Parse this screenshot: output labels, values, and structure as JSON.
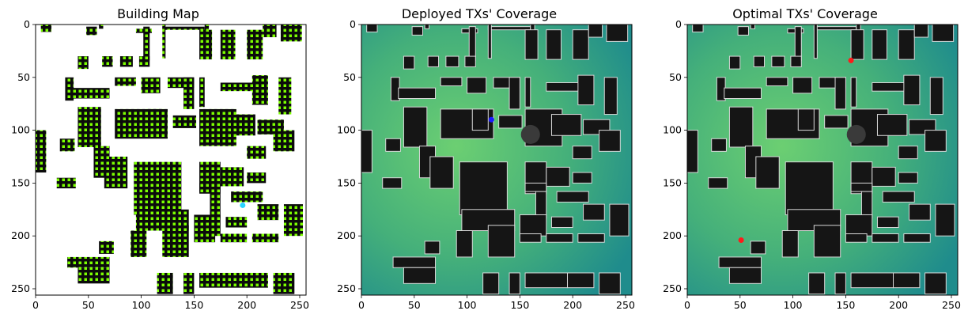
{
  "panels": [
    {
      "title": "Building Map",
      "kind": "building",
      "marker": {
        "x": 196,
        "y": 171,
        "color": "#2ad4ff"
      }
    },
    {
      "title": "Deployed TXs' Coverage",
      "kind": "coverage",
      "marker": {
        "x": 123,
        "y": 90,
        "color": "#1a1aff"
      }
    },
    {
      "title": "Optimal TXs' Coverage",
      "kind": "coverage",
      "marker": {
        "x": 155,
        "y": 34,
        "color": "#ff1a1a"
      },
      "marker2": {
        "x": 51,
        "y": 204,
        "color": "#ff1a1a"
      }
    }
  ],
  "axes": {
    "x_ticks": [
      "0",
      "50",
      "100",
      "150",
      "200",
      "250"
    ],
    "y_ticks": [
      "0",
      "50",
      "100",
      "150",
      "200",
      "250"
    ],
    "xlim": [
      0,
      256
    ],
    "ylim": [
      256,
      0
    ]
  },
  "colors": {
    "building": "#0b0b0b",
    "building_dots": "#7cff00",
    "coverage_low": "#1f8c8c",
    "coverage_high": "#6ccf72",
    "tower": "#3a3a3a"
  }
}
